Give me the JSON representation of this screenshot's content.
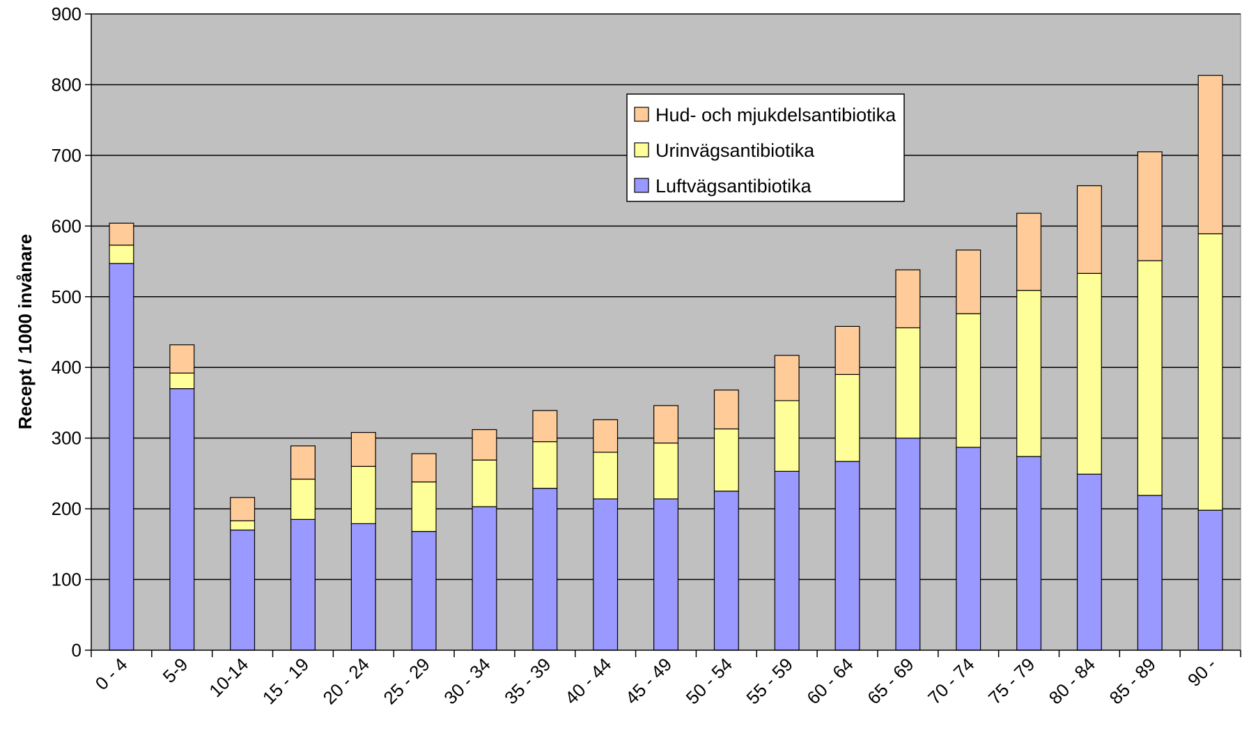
{
  "chart_data": {
    "type": "bar",
    "stacked": true,
    "title": "",
    "xlabel": "",
    "ylabel": "Recept / 1000 invånare",
    "ylim": [
      0,
      900
    ],
    "yticks": [
      0,
      100,
      200,
      300,
      400,
      500,
      600,
      700,
      800,
      900
    ],
    "grid": true,
    "legend_position": "top-right",
    "categories": [
      "0 - 4",
      "5-9",
      "10-14",
      "15 - 19",
      "20 - 24",
      "25 - 29",
      "30 - 34",
      "35 - 39",
      "40 - 44",
      "45 - 49",
      "50 - 54",
      "55 - 59",
      "60 - 64",
      "65 - 69",
      "70 - 74",
      "75 - 79",
      "80 - 84",
      "85 - 89",
      "90 -"
    ],
    "series": [
      {
        "name": "Luftvägsantibiotika",
        "color": "#9999ff",
        "values": [
          547,
          370,
          170,
          185,
          179,
          168,
          203,
          229,
          214,
          214,
          225,
          253,
          267,
          300,
          287,
          274,
          249,
          219,
          198
        ]
      },
      {
        "name": "Urinvägsantibiotika",
        "color": "#ffff99",
        "values": [
          26,
          22,
          13,
          57,
          81,
          70,
          66,
          66,
          66,
          79,
          88,
          100,
          123,
          156,
          189,
          235,
          284,
          332,
          391
        ]
      },
      {
        "name": "Hud- och mjukdelsantibiotika",
        "color": "#ffcc99",
        "values": [
          31,
          40,
          33,
          47,
          48,
          40,
          43,
          44,
          46,
          53,
          55,
          64,
          68,
          82,
          90,
          109,
          124,
          154,
          224
        ]
      }
    ],
    "legend_order": [
      "Hud- och mjukdelsantibiotika",
      "Urinvägsantibiotika",
      "Luftvägsantibiotika"
    ],
    "plot_background": "#c0c0c0"
  }
}
